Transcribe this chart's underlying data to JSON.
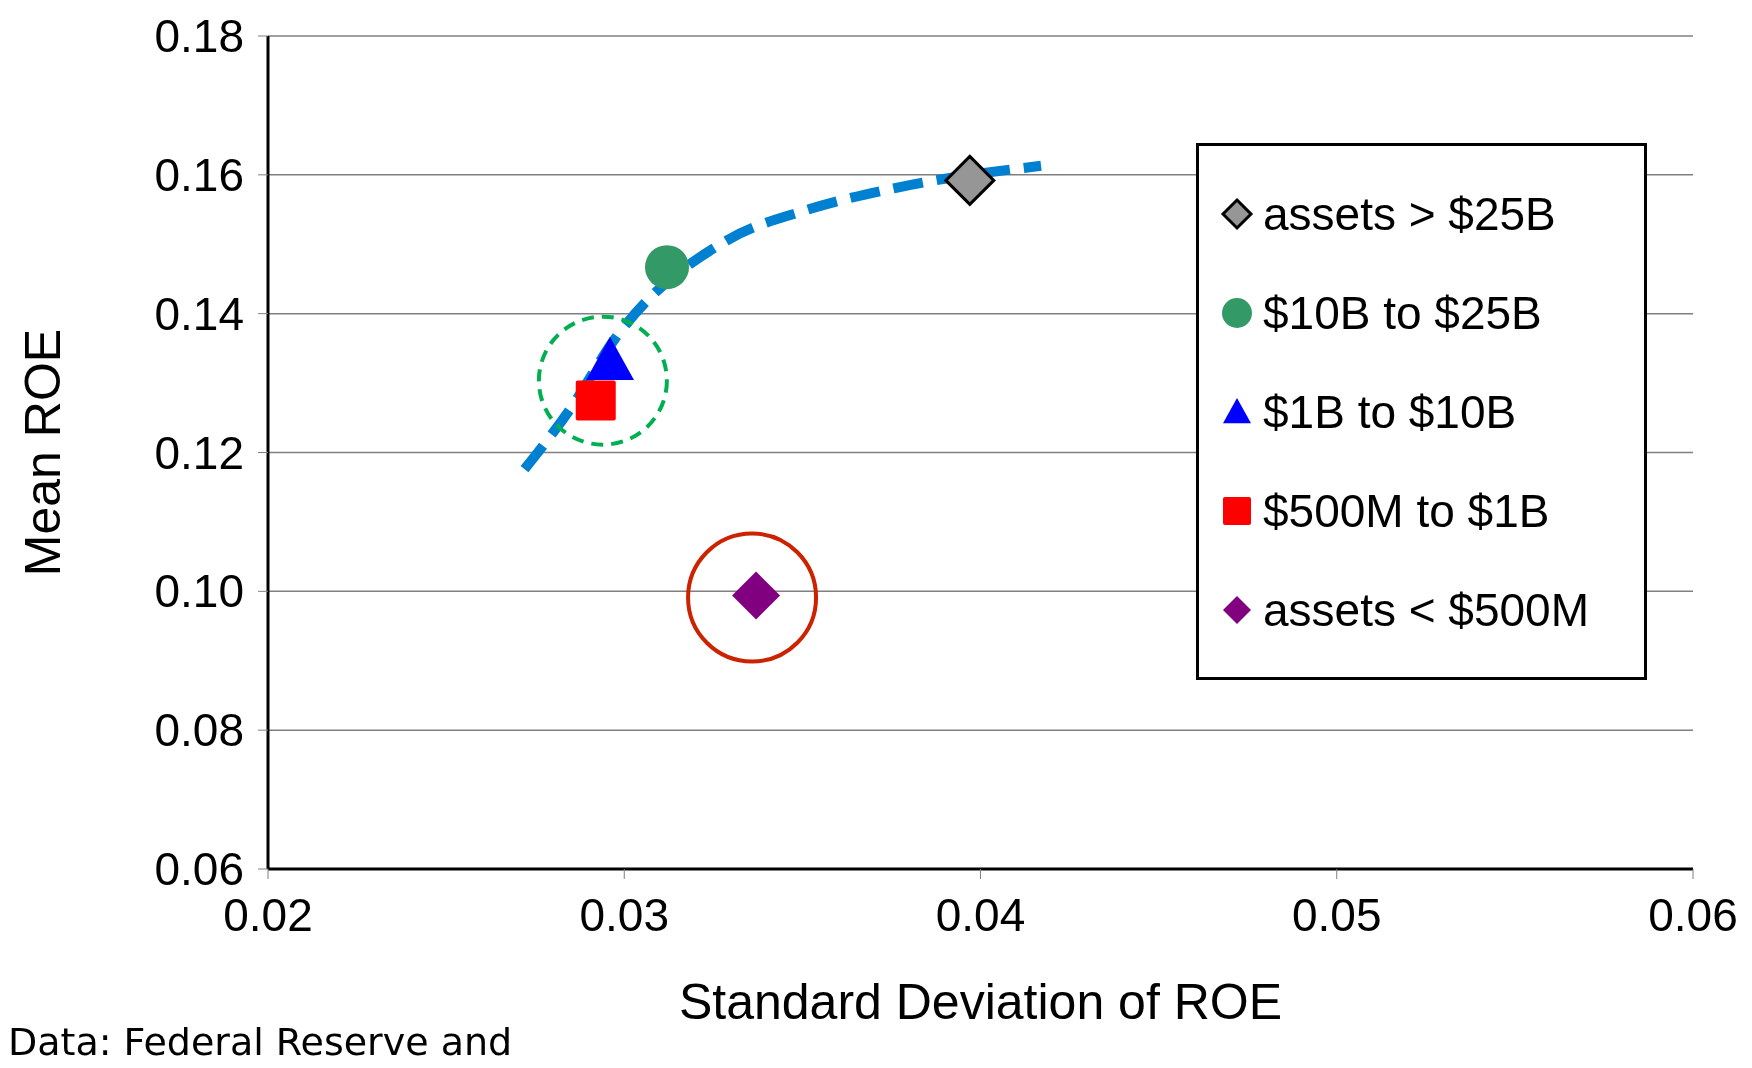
{
  "chart_data": {
    "type": "scatter",
    "xlabel": "Standard Deviation of ROE",
    "ylabel": "Mean ROE",
    "annotations": [
      "Data:  Federal Reserve and"
    ],
    "xlim": [
      0.02,
      0.06
    ],
    "xticks": [
      0.02,
      0.03,
      0.04,
      0.05,
      0.06
    ],
    "ylim": [
      0.06,
      0.18
    ],
    "yticks": [
      {
        "value": 0.06,
        "label": "0.06"
      },
      {
        "value": 0.08,
        "label": "0.08"
      },
      {
        "value": 0.1,
        "label": "0.10"
      },
      {
        "value": 0.12,
        "label": "0.12"
      },
      {
        "value": 0.14,
        "label": "0.14"
      },
      {
        "value": 0.16,
        "label": "0.16"
      },
      {
        "value": 0.18,
        "label": "0.18"
      }
    ],
    "grid": "y",
    "legend": "top right",
    "series": [
      {
        "name": "assets > $25B",
        "color": "#969696",
        "marker": "diamond",
        "x": [
          0.0397
        ],
        "values": [
          0.1592
        ]
      },
      {
        "name": "$10B to $25B",
        "color": "#339966",
        "marker": "circle",
        "x": [
          0.0312
        ],
        "values": [
          0.1467
        ]
      },
      {
        "name": "$1B to $10B",
        "color": "#0000ff",
        "marker": "triangle",
        "x": [
          0.0296
        ],
        "values": [
          0.1332
        ]
      },
      {
        "name": "$500M to $1B",
        "color": "#ff0000",
        "marker": "square",
        "x": [
          0.0292
        ],
        "values": [
          0.1275
        ]
      },
      {
        "name": "assets < $500M",
        "color": "#800080",
        "marker": "diamond",
        "x": [
          0.0337
        ],
        "values": [
          0.0994
        ]
      },
      {
        "type": "line",
        "color": "#0080d0",
        "marker": "none",
        "line_style": "dashed",
        "x": [
          0.0272,
          0.0285,
          0.0297,
          0.0329,
          0.0351,
          0.0376,
          0.0417
        ],
        "values": [
          0.1176,
          0.1264,
          0.1361,
          0.1506,
          0.1549,
          0.1581,
          0.1613
        ]
      }
    ]
  }
}
